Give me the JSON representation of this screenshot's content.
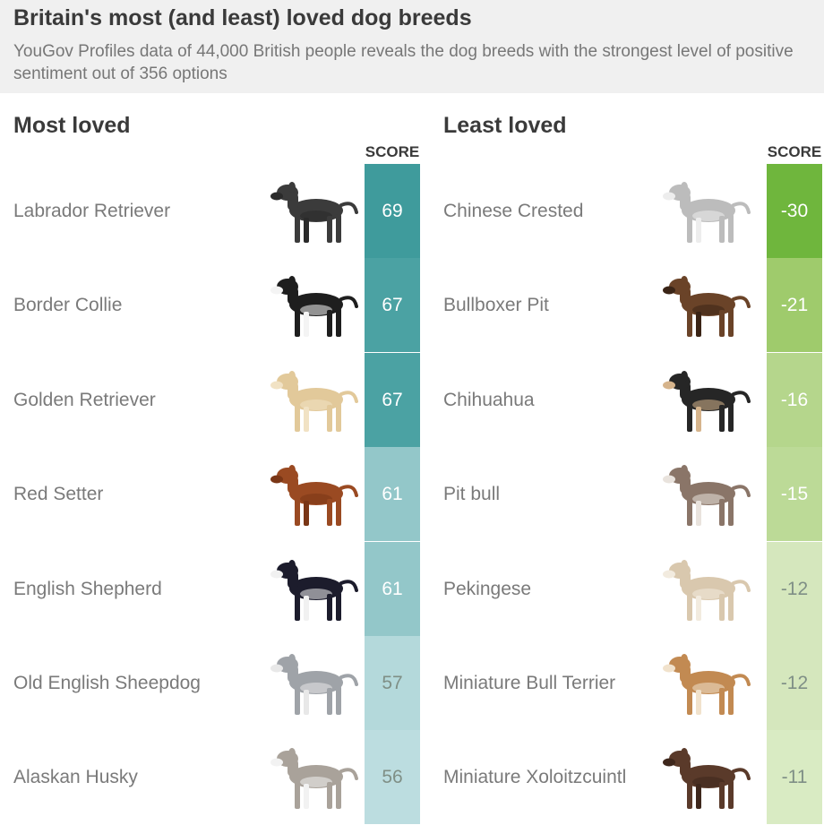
{
  "header": {
    "title": "Britain's most (and least) loved dog breeds",
    "subtitle": "YouGov Profiles data of 44,000 British people reveals the dog breeds with the strongest level of positive sentiment out of 356 options"
  },
  "chart_data": [
    {
      "type": "table",
      "title": "Most loved",
      "value_header": "SCORE",
      "categories": [
        "Labrador Retriever",
        "Border Collie",
        "Golden Retriever",
        "Red Setter",
        "English Shepherd",
        "Old English Sheepdog",
        "Alaskan Husky"
      ],
      "values": [
        69,
        67,
        67,
        61,
        61,
        57,
        56
      ],
      "cell_colors": [
        "#3f9b9c",
        "#4ba2a3",
        "#4ba2a3",
        "#93c7c9",
        "#93c7c9",
        "#b4d9db",
        "#bcdde0"
      ]
    },
    {
      "type": "table",
      "title": "Least loved",
      "value_header": "SCORE",
      "categories": [
        "Chinese Crested",
        "Bullboxer Pit",
        "Chihuahua",
        "Pit bull",
        "Pekingese",
        "Miniature Bull Terrier",
        "Miniature Xoloitzcuintl"
      ],
      "values": [
        -30,
        -21,
        -16,
        -15,
        -12,
        -12,
        -11
      ],
      "cell_colors": [
        "#6fb63d",
        "#9fcb6c",
        "#b5d68c",
        "#bcda97",
        "#d5e7bd",
        "#d5e7bd",
        "#d9ebc3"
      ]
    }
  ],
  "icons": [
    "labrador-retriever-icon",
    "border-collie-icon",
    "golden-retriever-icon",
    "red-setter-icon",
    "english-shepherd-icon",
    "old-english-sheepdog-icon",
    "alaskan-husky-icon",
    "chinese-crested-icon",
    "bullboxer-pit-icon",
    "chihuahua-icon",
    "pit-bull-icon",
    "pekingese-icon",
    "miniature-bull-terrier-icon",
    "miniature-xoloitzcuintl-icon"
  ],
  "dog_colors": {
    "most": [
      [
        "#3b3b3b",
        "#2a2a2a"
      ],
      [
        "#1e1e1e",
        "#f4f4f4"
      ],
      [
        "#e2c99a",
        "#f1e2c4"
      ],
      [
        "#9a4a22",
        "#7a3616"
      ],
      [
        "#1c1c2c",
        "#f1f1f1"
      ],
      [
        "#9fa3a8",
        "#e8e8e8"
      ],
      [
        "#a9a29a",
        "#f2f2f2"
      ]
    ],
    "least": [
      [
        "#bcbcbc",
        "#ededed"
      ],
      [
        "#6a4328",
        "#3a2416"
      ],
      [
        "#262626",
        "#d6b48c"
      ],
      [
        "#8a7568",
        "#e9e3dd"
      ],
      [
        "#d9c8ae",
        "#f2ebdf"
      ],
      [
        "#c28a52",
        "#f1e2cc"
      ],
      [
        "#5a3a2a",
        "#3e271c"
      ]
    ]
  }
}
